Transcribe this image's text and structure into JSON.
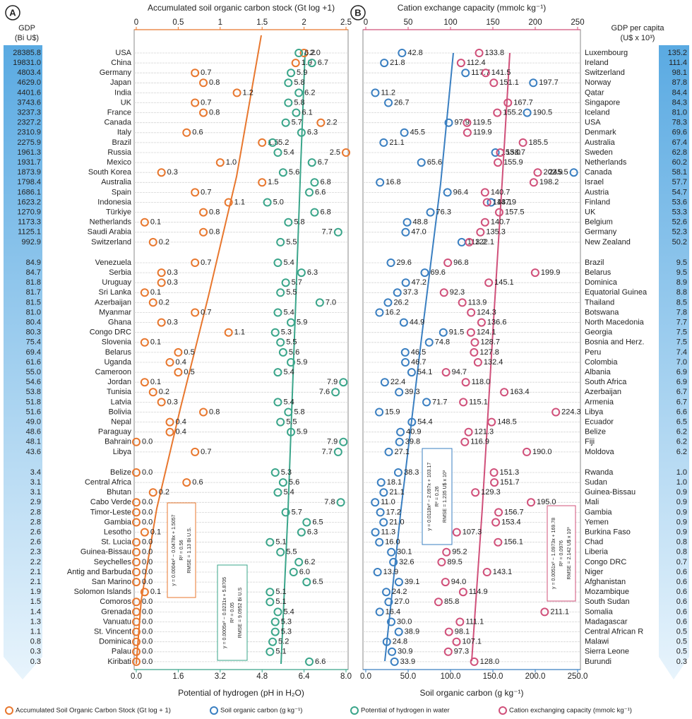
{
  "chart_data": [
    {
      "type": "dot",
      "panel": "A",
      "row_title": "GDP",
      "row_unit": "(Bi U$)",
      "categories": [
        "USA",
        "China",
        "Germany",
        "Japan",
        "India",
        "UK",
        "France",
        "Canada",
        "Italy",
        "Brazil",
        "Russia",
        "Mexico",
        "South Korea",
        "Australia",
        "Spain",
        "Indonesia",
        "Türkiye",
        "Netherlands",
        "Saudi Arabia",
        "Switzerland",
        "Venezuela",
        "Serbia",
        "Uruguay",
        "Sri Lanka",
        "Azerbaijan",
        "Myanmar",
        "Ghana",
        "Congo DRC",
        "Slovenia",
        "Belarus",
        "Uganda",
        "Cameroon",
        "Jordan",
        "Tunisia",
        "Latvia",
        "Bolivia",
        "Nepal",
        "Paraguay",
        "Bahrain",
        "Libya",
        "Belize",
        "Central Africa",
        "Bhutan",
        "Cabo Verde",
        "Timor-Leste",
        "Gambia",
        "Lesotho",
        "St. Lucia",
        "Guinea-Bissau",
        "Seychelles",
        "Antig and Barbuda",
        "San Marino",
        "Solomon Islands",
        "Comoros",
        "Grenada",
        "Vanuatu",
        "St. Vincent",
        "Dominica",
        "Palau",
        "Kiribati"
      ],
      "gdp": [
        "28385.8",
        "19831.0",
        "4803.4",
        "4629.0",
        "4401.6",
        "3743.6",
        "3237.3",
        "2327.2",
        "2310.9",
        "2275.9",
        "1961.3",
        "1931.7",
        "1873.9",
        "1798.4",
        "1686.1",
        "1623.2",
        "1270.9",
        "1173.3",
        "1125.1",
        "992.9",
        "84.9",
        "84.7",
        "81.8",
        "81.7",
        "81.5",
        "81.0",
        "80.4",
        "80.3",
        "75.4",
        "69.4",
        "61.6",
        "55.0",
        "54.6",
        "53.8",
        "51.8",
        "51.6",
        "49.0",
        "48.6",
        "48.1",
        "43.6",
        "3.4",
        "3.1",
        "3.1",
        "2.9",
        "2.8",
        "2.8",
        "2.6",
        "2.6",
        "2.3",
        "2.2",
        "2.1",
        "2.1",
        "1.9",
        "1.5",
        "1.4",
        "1.3",
        "1.1",
        "0.8",
        "0.3",
        "0.3"
      ],
      "x2label": "Accumulated soil organic carbon stock (Gt log +1)",
      "x2lim": [
        0,
        2.5
      ],
      "x2ticks": [
        0,
        0.5,
        1,
        1.5,
        2,
        2.5
      ],
      "xlabel": "Potential of hydrogen (pH in H₂O)",
      "xlim": [
        0,
        8
      ],
      "xticks": [
        {
          "value": 0,
          "label": "0.0"
        },
        1.6,
        3.2,
        4.8,
        6.4,
        {
          "value": 8,
          "label": "8.0"
        }
      ],
      "grid": true,
      "series": [
        {
          "name": "Accumulated Soil Organic Carbon Stock (Gt log + 1)",
          "color": "#e8772e",
          "axis": "x2",
          "values": [
            2.0,
            1.9,
            0.7,
            0.8,
            1.2,
            0.7,
            0.8,
            2.2,
            0.6,
            1.5,
            2.5,
            1.0,
            0.3,
            1.5,
            0.7,
            1.1,
            0.8,
            0.1,
            0.8,
            0.2,
            0.7,
            0.3,
            0.3,
            0.1,
            0.2,
            0.7,
            0.3,
            1.1,
            0.1,
            0.5,
            0.4,
            0.5,
            0.1,
            0.2,
            0.3,
            0.8,
            0.4,
            0.4,
            0.0,
            0.7,
            0.0,
            0.6,
            0.2,
            0.0,
            0.0,
            0.0,
            0.1,
            0.0,
            0.0,
            0.0,
            0.0,
            0.0,
            0.1,
            0.0,
            0.0,
            0.0,
            0.0,
            0.0,
            0.0,
            0.0
          ],
          "value_labels": [
            "2.0",
            "1.9",
            "0.7",
            "0.8",
            "1.2",
            "0.7",
            "0.8",
            "2.2",
            "0.6",
            "1.5",
            "2.5",
            "1.0",
            "0.3",
            "1.5",
            "0.7",
            "1.1",
            "0.8",
            "0.1",
            "0.8",
            "0.2",
            "0.7",
            "0.3",
            "0.3",
            "0.1",
            "0.2",
            "0.7",
            "0.3",
            "1.1",
            "0.1",
            "0.5",
            "0.4",
            "0.5",
            "0.1",
            "0.2",
            "0.3",
            "0.8",
            "0.4",
            "0.4",
            "0.0",
            "0.7",
            "0.0",
            "0.6",
            "0.2",
            "0.0",
            "0.0",
            "0.0",
            "0.1",
            "0.0",
            "0.0",
            "0.0",
            "0.0",
            "0.0",
            "0.1",
            "0.0",
            "0.0",
            "0.0",
            "0.0",
            "0.0",
            "0.0",
            "0.0"
          ]
        },
        {
          "name": "Potential of hydrogen in water",
          "color": "#3aa58a",
          "axis": "x",
          "values": [
            6.2,
            6.7,
            5.9,
            5.8,
            6.2,
            5.8,
            6.1,
            5.7,
            6.3,
            5.2,
            5.4,
            6.7,
            5.6,
            6.8,
            6.6,
            5.0,
            6.8,
            5.8,
            7.7,
            5.5,
            5.4,
            6.3,
            5.7,
            5.5,
            7.0,
            5.4,
            5.9,
            5.3,
            5.5,
            5.6,
            5.9,
            5.4,
            7.9,
            7.6,
            5.4,
            5.8,
            5.5,
            5.9,
            7.9,
            7.7,
            5.3,
            5.6,
            5.4,
            7.8,
            5.7,
            6.5,
            6.3,
            5.1,
            5.5,
            6.2,
            6.0,
            6.5,
            5.1,
            5.1,
            5.4,
            5.3,
            5.3,
            5.2,
            5.1,
            6.6
          ],
          "value_labels": [
            "6.2",
            "6.7",
            "5.9",
            "5.8",
            "6.2",
            "5.8",
            "6.1",
            "5.7",
            "6.3",
            "5.2",
            "5.4",
            "6.7",
            "5.6",
            "6.8",
            "6.6",
            "5.0",
            "6.8",
            "5.8",
            "7.7",
            "5.5",
            "5.4",
            "6.3",
            "5.7",
            "5.5",
            "7.0",
            "5.4",
            "5.9",
            "5.3",
            "5.5",
            "5.6",
            "5.9",
            "5.4",
            "7.9",
            "7.6",
            "5.4",
            "5.8",
            "5.5",
            "5.9",
            "7.9",
            "7.7",
            "5.3",
            "5.6",
            "5.4",
            "7.8",
            "5.7",
            "6.5",
            "6.3",
            "5.1",
            "5.5",
            "6.2",
            "6.0",
            "6.5",
            "5.1",
            "5.1",
            "5.4",
            "5.3",
            "5.3",
            "5.2",
            "5.1",
            "6.6"
          ]
        }
      ],
      "annotations": [
        [
          "y = 0.0004x² − 0.0478x + 1.5057",
          "R² = 0.56",
          "RMSE = 1.13 Bi U.S."
        ],
        [
          "y = 0.0005x² − 0.0231x + 5.8705",
          "R² = 0.05",
          "RMSE = 9.0952 Bi U.S"
        ]
      ]
    },
    {
      "type": "dot",
      "panel": "B",
      "row_title": "GDP per capita",
      "row_unit": "(U$ x 10³)",
      "categories": [
        "Luxembourg",
        "Ireland",
        "Switzerland",
        "Norway",
        "Qatar",
        "Singapore",
        "Iceland",
        "USA",
        "Denmark",
        "Australia",
        "Sweden",
        "Netherlands",
        "Canada",
        "Israel",
        "Austria",
        "Finland",
        "UK",
        "Belgium",
        "Germany",
        "New Zealand",
        "Brazil",
        "Belarus",
        "Dominica",
        "Equatorial Guinea",
        "Thailand",
        "Botswana",
        "North Macedonia",
        "Georgia",
        "Bosnia and Herz.",
        "Peru",
        "Colombia",
        "Albania",
        "South Africa",
        "Azerbaijan",
        "Armenia",
        "Libya",
        "Ecuador",
        "Belize",
        "Fiji",
        "Moldova",
        "Rwanda",
        "Sudan",
        "Guinea-Bissau",
        "Mali",
        "Gambia",
        "Yemen",
        "Burkina Faso",
        "Chad",
        "Liberia",
        "Congo DRC",
        "Niger",
        "Afghanistan",
        "Mozambique",
        "South Sudan",
        "Somalia",
        "Madagascar",
        "Central African R",
        "Malawi",
        "Sierra Leone",
        "Burundi"
      ],
      "gdp": [
        "135.2",
        "111.4",
        "98.1",
        "87.8",
        "84.4",
        "84.3",
        "81.0",
        "78.3",
        "69.6",
        "67.4",
        "62.8",
        "60.2",
        "58.1",
        "57.7",
        "54.7",
        "53.6",
        "53.3",
        "52.6",
        "52.3",
        "50.2",
        "9.5",
        "9.5",
        "8.9",
        "8.8",
        "8.5",
        "7.8",
        "7.7",
        "7.5",
        "7.5",
        "7.4",
        "7.0",
        "6.9",
        "6.9",
        "6.7",
        "6.7",
        "6.6",
        "6.5",
        "6.2",
        "6.2",
        "6.2",
        "1.0",
        "1.0",
        "0.9",
        "0.9",
        "0.9",
        "0.9",
        "0.9",
        "0.8",
        "0.8",
        "0.7",
        "0.6",
        "0.6",
        "0.6",
        "0.6",
        "0.6",
        "0.6",
        "0.5",
        "0.5",
        "0.5",
        "0.3"
      ],
      "x2label": "Cation exchange capacity (mmolc kg⁻¹)",
      "x2lim": [
        0,
        250
      ],
      "x2ticks": [
        0,
        50,
        100,
        150,
        200,
        250
      ],
      "xlabel": "Soil organic carbon (g kg⁻¹)",
      "xlim": [
        0,
        250
      ],
      "xticks": [
        {
          "value": 0,
          "label": "0.0"
        },
        {
          "value": 50,
          "label": "50.0"
        },
        {
          "value": 100,
          "label": "100.0"
        },
        {
          "value": 150,
          "label": "150.0"
        },
        {
          "value": 200,
          "label": "200.0"
        },
        {
          "value": 250,
          "label": "250.0"
        }
      ],
      "grid": true,
      "series": [
        {
          "name": "Soil organic carbon (g kg⁻¹)",
          "color": "#3a7fc1",
          "axis": "x",
          "values": [
            42.8,
            21.8,
            117.7,
            197.7,
            11.2,
            26.7,
            190.5,
            97.9,
            45.5,
            21.1,
            153.0,
            65.6,
            245.5,
            16.8,
            96.4,
            147.9,
            76.3,
            48.8,
            47.0,
            113.2,
            29.6,
            69.6,
            47.2,
            37.3,
            26.2,
            16.2,
            44.9,
            91.5,
            74.8,
            46.5,
            46.7,
            54.1,
            22.4,
            39.3,
            71.7,
            15.9,
            54.4,
            40.9,
            39.8,
            27.1,
            38.3,
            18.1,
            21.1,
            11.0,
            17.2,
            21.0,
            11.3,
            16.0,
            30.1,
            32.6,
            13.9,
            39.1,
            24.2,
            27.0,
            16.4,
            30.0,
            38.9,
            24.8,
            30.9,
            33.9
          ],
          "value_labels": [
            "42.8",
            "21.8",
            "117.7",
            "197.7",
            "11.2",
            "26.7",
            "190.5",
            "97.9",
            "45.5",
            "21.1",
            "153.0",
            "65.6",
            "245.5",
            "16.8",
            "96.4",
            "147.9",
            "76.3",
            "48.8",
            "47.0",
            "113.2",
            "29.6",
            "69.6",
            "47.2",
            "37.3",
            "26.2",
            "16.2",
            "44.9",
            "91.5",
            "74.8",
            "46.5",
            "46.7",
            "54.1",
            "22.4",
            "39.3",
            "71.7",
            "15.9",
            "54.4",
            "40.9",
            "39.8",
            "27.1",
            "38.3",
            "18.1",
            "21.1",
            "11.0",
            "17.2",
            "21.0",
            "11.3",
            "16.0",
            "30.1",
            "32.6",
            "13.9",
            "39.1",
            "24.2",
            "27.0",
            "16.4",
            "30.0",
            "38.9",
            "24.8",
            "30.9",
            "33.9"
          ]
        },
        {
          "name": "Cation exchanging capacity (mmolc kg⁻¹)",
          "color": "#d0507a",
          "axis": "x2",
          "values": [
            133.8,
            112.4,
            141.5,
            151.1,
            null,
            167.7,
            155.2,
            119.5,
            119.9,
            185.5,
            158.7,
            155.9,
            202.9,
            198.2,
            140.7,
            143.1,
            157.5,
            140.7,
            135.3,
            122.1,
            96.8,
            199.9,
            145.1,
            92.3,
            113.9,
            124.3,
            136.6,
            124.1,
            128.7,
            127.8,
            132.4,
            94.7,
            118.0,
            163.4,
            115.1,
            224.3,
            148.5,
            121.3,
            116.9,
            190.0,
            151.3,
            151.7,
            129.3,
            195.0,
            156.7,
            153.4,
            107.3,
            156.1,
            95.2,
            89.5,
            143.1,
            94.0,
            114.9,
            85.8,
            211.1,
            111.1,
            98.1,
            107.1,
            97.3,
            128.0
          ],
          "value_labels": [
            "133.8",
            "112.4",
            "141.5",
            "151.1",
            null,
            "167.7",
            "155.2",
            "119.5",
            "119.9",
            "185.5",
            "158.7",
            "155.9",
            "202.9",
            "198.2",
            "140.7",
            "143.1",
            "157.5",
            "140.7",
            "135.3",
            "122.1",
            "96.8",
            "199.9",
            "145.1",
            "92.3",
            "113.9",
            "124.3",
            "136.6",
            "124.1",
            "128.7",
            "127.8",
            "132.4",
            "94.7",
            "118.0",
            "163.4",
            "115.1",
            "224.3",
            "148.5",
            "121.3",
            "116.9",
            "190.0",
            "151.3",
            "151.7",
            "129.3",
            "195.0",
            "156.7",
            "153.4",
            "107.3",
            "156.1",
            "95.2",
            "89.5",
            "143.1",
            "94.0",
            "114.9",
            "85.8",
            "211.1",
            "111.1",
            "98.1",
            "107.1",
            "97.3",
            "128.0"
          ]
        }
      ],
      "annotations": [
        [
          "y = 0.0118x² − 2.097x + 103.17",
          "R² = 0.26",
          "RMSE = 1.235 U$ x 10³"
        ],
        [
          "y = 0.0051x² − 1.0973x + 169.78",
          "R² = 0.0976",
          "RMSE = 2.142 U$ x 10³"
        ]
      ]
    }
  ]
}
